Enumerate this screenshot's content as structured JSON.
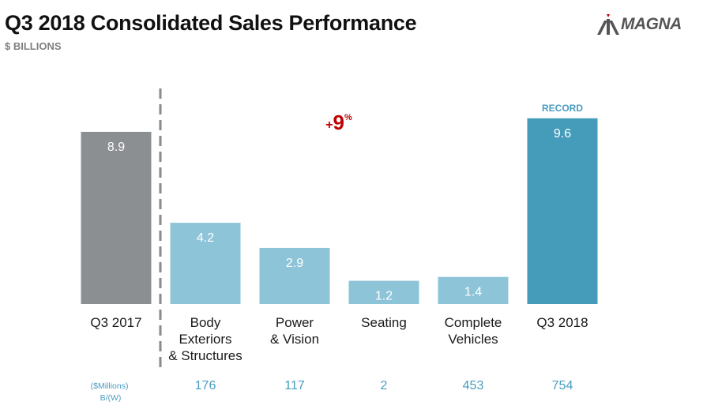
{
  "header": {
    "title": "Q3 2018 Consolidated Sales Performance",
    "subtitle": "$ BILLIONS",
    "logo_text": "MAGNA"
  },
  "chart_data": {
    "type": "bar",
    "title": "Q3 2018 Consolidated Sales Performance",
    "ylabel": "$ BILLIONS",
    "ylim": [
      0,
      10
    ],
    "categories": [
      "Q3 2017",
      "Body Exteriors & Structures",
      "Power & Vision",
      "Seating",
      "Complete Vehicles",
      "Q3 2018"
    ],
    "category_lines": [
      [
        "Q3 2017"
      ],
      [
        "Body",
        "Exteriors",
        "& Structures"
      ],
      [
        "Power",
        "& Vision"
      ],
      [
        "Seating"
      ],
      [
        "Complete",
        "Vehicles"
      ],
      [
        "Q3 2018"
      ]
    ],
    "values": [
      8.9,
      4.2,
      2.9,
      1.2,
      1.4,
      9.6
    ],
    "value_labels": [
      "8.9",
      "4.2",
      "2.9",
      "1.2",
      "1.4",
      "9.6"
    ],
    "bar_colors": [
      "#8c8f92",
      "#8ec4d8",
      "#8ec4d8",
      "#8ec4d8",
      "#8ec4d8",
      "#449bba"
    ],
    "annotations": {
      "record_label": "RECORD",
      "growth_sign": "+",
      "growth_value": "9",
      "growth_unit": "%"
    },
    "footer": {
      "caption_lines": [
        "($Millions)",
        "B/(W)"
      ],
      "values": [
        "",
        "176",
        "117",
        "2",
        "453",
        "754"
      ]
    }
  }
}
